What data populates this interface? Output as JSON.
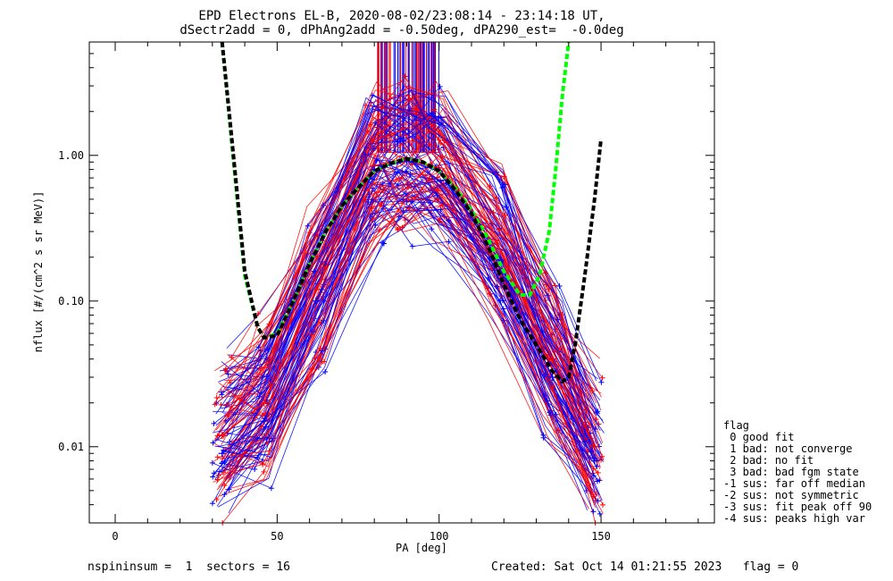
{
  "title_line1": "EPD Electrons EL-B, 2020-08-02/23:08:14 - 23:14:18 UT,",
  "title_line2": "dSectr2add = 0, dPhAng2add = -0.50deg, dPA290_est=  -0.0deg",
  "footer_left": "nspininsum =  1  sectors = 16",
  "footer_right": "Created: Sat Oct 14 01:21:55 2023   flag = 0",
  "legend": {
    "title": "flag",
    "items": [
      " 0 good fit",
      " 1 bad: not converge",
      " 2 bad: no fit",
      " 3 bad: bad fgm state",
      "-1 sus: far off median",
      "-2 sus: not symmetric",
      "-3 sus: fit peak off 90",
      "-4 sus: peaks high var"
    ]
  },
  "colors": {
    "red": "#ff0000",
    "blue": "#0000ff",
    "green_fit": "#00ff00",
    "black_fit": "#000000",
    "axes": "#000000"
  },
  "chart_data": {
    "type": "line",
    "xlabel": "PA [deg]",
    "ylabel": "nflux [#/(cm^2 s sr MeV)]",
    "xlim": [
      -8,
      185
    ],
    "ylim": [
      0.003,
      6.0
    ],
    "yscale": "log",
    "x_ticks": [
      0,
      50,
      100,
      150
    ],
    "x_tick_labels": [
      "0",
      "50",
      "100",
      "150"
    ],
    "y_ticks": [
      0.01,
      0.1,
      1.0
    ],
    "y_tick_labels": [
      "0.01",
      "0.10",
      "1.00"
    ],
    "series": [
      {
        "color": "red",
        "style": "solid+plus",
        "x": [
          33,
          46,
          62,
          80,
          90,
          100,
          118,
          135,
          148
        ],
        "y": [
          0.012,
          0.02,
          0.12,
          0.85,
          0.95,
          0.82,
          0.25,
          0.04,
          0.01
        ]
      },
      {
        "color": "blue",
        "style": "solid+plus",
        "x": [
          33,
          46,
          62,
          80,
          90,
          100,
          118,
          135,
          148
        ],
        "y": [
          0.009,
          0.015,
          0.1,
          0.8,
          0.92,
          0.78,
          0.2,
          0.03,
          0.008
        ]
      },
      {
        "color": "green_fit",
        "style": "dashed",
        "x": [
          33,
          36,
          40,
          44,
          46,
          50,
          55,
          60,
          65,
          70,
          75,
          80,
          85,
          90,
          95,
          100,
          105,
          110,
          115,
          120,
          125,
          128,
          131,
          134,
          136,
          138,
          140
        ],
        "y": [
          6.0,
          1.2,
          0.15,
          0.066,
          0.056,
          0.06,
          0.1,
          0.18,
          0.3,
          0.45,
          0.6,
          0.78,
          0.88,
          0.95,
          0.9,
          0.78,
          0.6,
          0.42,
          0.27,
          0.16,
          0.11,
          0.11,
          0.15,
          0.3,
          0.8,
          2.5,
          6.0
        ]
      },
      {
        "color": "black_fit",
        "style": "dashed",
        "x": [
          33,
          36,
          40,
          44,
          46,
          50,
          55,
          60,
          65,
          70,
          75,
          80,
          85,
          90,
          95,
          100,
          105,
          110,
          115,
          120,
          125,
          130,
          135,
          138,
          140,
          142,
          145,
          148,
          150
        ],
        "y": [
          6.0,
          1.3,
          0.16,
          0.066,
          0.056,
          0.058,
          0.1,
          0.18,
          0.3,
          0.45,
          0.6,
          0.78,
          0.88,
          0.95,
          0.9,
          0.78,
          0.58,
          0.4,
          0.24,
          0.13,
          0.075,
          0.05,
          0.033,
          0.028,
          0.03,
          0.05,
          0.15,
          0.5,
          1.3
        ]
      }
    ]
  }
}
